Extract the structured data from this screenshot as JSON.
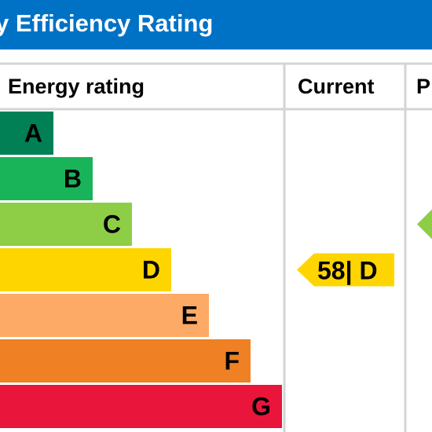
{
  "header": {
    "title": "y Efficiency Rating"
  },
  "table": {
    "col_energy": "Energy rating",
    "col_current": "Current",
    "col_potential": "P"
  },
  "colors": {
    "banner": "#0072c6",
    "grid": "#d4d4d4",
    "A": "#008054",
    "B": "#19b459",
    "C": "#8dce46",
    "D": "#ffd500",
    "E": "#fcaa65",
    "F": "#ef8023",
    "G": "#e9153b"
  },
  "chart_data": {
    "type": "bar",
    "categories": [
      "A",
      "B",
      "C",
      "D",
      "E",
      "F",
      "G"
    ],
    "current": {
      "score": 58,
      "band": "D",
      "label": "58| D"
    },
    "potential": {
      "band": "C"
    }
  }
}
